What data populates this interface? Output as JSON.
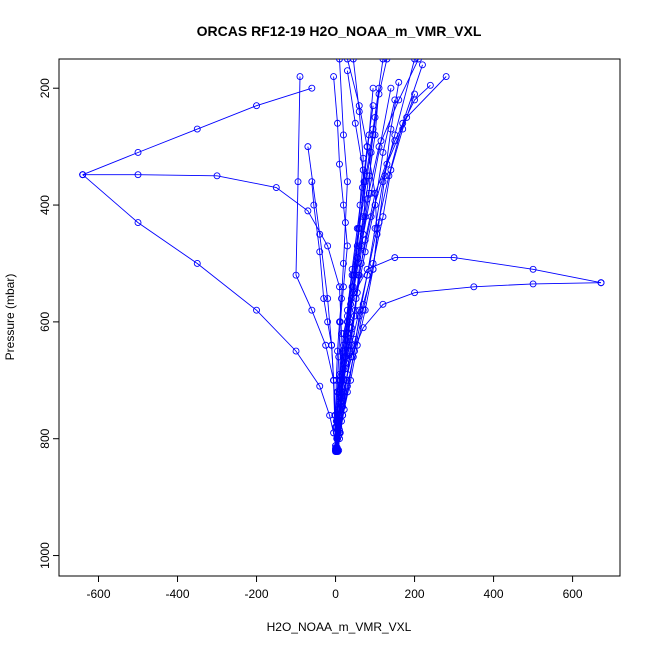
{
  "chart_data": {
    "type": "line",
    "title": "ORCAS RF12-19 H2O_NOAA_m_VMR_VXL",
    "xlabel": "H2O_NOAA_m_VMR_VXL",
    "ylabel": "Pressure (mbar)",
    "xlim": [
      -700,
      720
    ],
    "ylim": [
      1035,
      150
    ],
    "y_reversed": true,
    "x_ticks": [
      -600,
      -400,
      -200,
      0,
      200,
      400,
      600
    ],
    "y_ticks": [
      200,
      400,
      600,
      800,
      1000
    ],
    "grid": false,
    "legend": "none",
    "series_color": "#0000ff",
    "marker": "open-circle",
    "series": [
      {
        "x": [
          0,
          2,
          5,
          18,
          30,
          45,
          60,
          80,
          95,
          110,
          130
        ],
        "y": [
          820,
          780,
          720,
          650,
          600,
          520,
          440,
          350,
          280,
          210,
          150
        ]
      },
      {
        "x": [
          3,
          6,
          14,
          25,
          40,
          52,
          65,
          90,
          130,
          180,
          280
        ],
        "y": [
          818,
          790,
          740,
          680,
          620,
          560,
          500,
          420,
          330,
          250,
          180
        ]
      },
      {
        "x": [
          5,
          8,
          20,
          35,
          50,
          60,
          75,
          100,
          150,
          200,
          240
        ],
        "y": [
          820,
          760,
          700,
          640,
          580,
          520,
          460,
          380,
          290,
          220,
          195
        ]
      },
      {
        "x": [
          2,
          4,
          10,
          20,
          30,
          42,
          55,
          62,
          70,
          60,
          45
        ],
        "y": [
          821,
          770,
          720,
          660,
          600,
          540,
          470,
          400,
          320,
          240,
          150
        ]
      },
      {
        "x": [
          6,
          10,
          18,
          28,
          40,
          60,
          80,
          100,
          120,
          150,
          200
        ],
        "y": [
          822,
          800,
          760,
          700,
          640,
          580,
          520,
          440,
          360,
          280,
          150
        ]
      },
      {
        "x": [
          1,
          0,
          2,
          5,
          10,
          15,
          20,
          25,
          30,
          20,
          10
        ],
        "y": [
          819,
          780,
          700,
          650,
          600,
          560,
          500,
          430,
          360,
          280,
          150
        ]
      },
      {
        "x": [
          4,
          7,
          15,
          25,
          35,
          45,
          55,
          70,
          85,
          100,
          110
        ],
        "y": [
          815,
          780,
          730,
          670,
          610,
          550,
          490,
          420,
          350,
          280,
          200
        ]
      },
      {
        "x": [
          8,
          10,
          12,
          16,
          22,
          30,
          42,
          58,
          75,
          95,
          120
        ],
        "y": [
          820,
          790,
          750,
          700,
          650,
          590,
          520,
          440,
          360,
          270,
          150
        ]
      },
      {
        "x": [
          0,
          3,
          9,
          15,
          25,
          35,
          48,
          60,
          72,
          85,
          95
        ],
        "y": [
          816,
          800,
          770,
          720,
          660,
          600,
          520,
          440,
          360,
          280,
          200
        ]
      },
      {
        "x": [
          5,
          12,
          22,
          38,
          55,
          75,
          95,
          110,
          125,
          140,
          160
        ],
        "y": [
          821,
          790,
          750,
          700,
          640,
          580,
          510,
          430,
          350,
          270,
          190
        ]
      },
      {
        "x": [
          2,
          8,
          15,
          25,
          35,
          45,
          60,
          80,
          110,
          160,
          210
        ],
        "y": [
          818,
          780,
          730,
          660,
          600,
          540,
          470,
          390,
          300,
          220,
          150
        ]
      },
      {
        "x": [
          3,
          5,
          8,
          12,
          20,
          30,
          45,
          65,
          90,
          115,
          140
        ],
        "y": [
          820,
          800,
          770,
          730,
          680,
          620,
          550,
          470,
          380,
          290,
          200
        ]
      },
      {
        "x": [
          0,
          10,
          30,
          50,
          70,
          95,
          105,
          100,
          80,
          60,
          30
        ],
        "y": [
          812,
          750,
          690,
          630,
          570,
          510,
          450,
          380,
          300,
          230,
          150
        ]
      },
      {
        "x": [
          2,
          6,
          10,
          15,
          25,
          40,
          55,
          75,
          100,
          120,
          150
        ],
        "y": [
          819,
          790,
          760,
          720,
          670,
          610,
          550,
          480,
          400,
          310,
          220
        ]
      },
      {
        "x": [
          1,
          5,
          15,
          30,
          45,
          60,
          80,
          105,
          135,
          170,
          220
        ],
        "y": [
          820,
          800,
          770,
          720,
          660,
          590,
          520,
          440,
          350,
          260,
          160
        ]
      },
      {
        "x": [
          0,
          -5,
          -10,
          -20,
          -30,
          -40,
          -55,
          -60
        ],
        "y": [
          822,
          700,
          640,
          600,
          560,
          480,
          400,
          360
        ]
      },
      {
        "x": [
          0,
          -2,
          -5,
          -10,
          -20,
          -40,
          -70
        ],
        "y": [
          820,
          760,
          700,
          640,
          560,
          450,
          300
        ]
      },
      {
        "x": [
          2,
          0,
          -5,
          -25,
          -60,
          -100,
          -95,
          -90
        ],
        "y": [
          821,
          760,
          700,
          640,
          580,
          520,
          360,
          180
        ]
      },
      {
        "x": [
          1,
          2,
          4,
          8,
          12,
          20,
          30,
          20,
          10,
          5,
          -5
        ],
        "y": [
          818,
          770,
          720,
          660,
          600,
          540,
          470,
          400,
          330,
          260,
          180
        ]
      },
      {
        "x": [
          4,
          6,
          10,
          16,
          26,
          38,
          55,
          75,
          70,
          50,
          30
        ],
        "y": [
          820,
          780,
          740,
          690,
          630,
          570,
          500,
          420,
          340,
          260,
          170
        ]
      },
      {
        "x": [
          3,
          8,
          20,
          40,
          70,
          120,
          200,
          350,
          500,
          672
        ],
        "y": [
          819,
          780,
          720,
          660,
          610,
          570,
          550,
          540,
          535,
          533
        ]
      },
      {
        "x": [
          2,
          5,
          10,
          20,
          40,
          80,
          150,
          300,
          500,
          672
        ],
        "y": [
          821,
          770,
          700,
          620,
          560,
          510,
          490,
          490,
          510,
          533
        ]
      },
      {
        "x": [
          1,
          -5,
          -15,
          -40,
          -100,
          -200,
          -350,
          -500,
          -640
        ],
        "y": [
          815,
          790,
          760,
          710,
          650,
          580,
          500,
          430,
          348
        ]
      },
      {
        "x": [
          0,
          5,
          10,
          15,
          10,
          -20,
          -70,
          -150,
          -300,
          -500,
          -640
        ],
        "y": [
          818,
          760,
          690,
          620,
          540,
          470,
          410,
          370,
          350,
          348,
          348
        ]
      },
      {
        "x": [
          -640,
          -500,
          -350,
          -200,
          -60
        ],
        "y": [
          348,
          310,
          270,
          230,
          200
        ]
      },
      {
        "x": [
          2,
          8,
          18,
          30,
          48,
          70,
          95,
          120,
          140,
          170,
          200
        ],
        "y": [
          822,
          795,
          760,
          710,
          650,
          580,
          500,
          420,
          340,
          270,
          210
        ]
      },
      {
        "x": [
          5,
          10,
          18,
          28,
          36,
          48,
          58,
          70,
          85,
          90,
          100
        ],
        "y": [
          817,
          785,
          745,
          700,
          650,
          590,
          520,
          450,
          380,
          310,
          250
        ]
      },
      {
        "x": [
          0,
          2,
          6,
          12,
          20,
          30,
          42,
          55,
          68,
          80,
          95
        ],
        "y": [
          820,
          790,
          750,
          700,
          640,
          580,
          510,
          440,
          370,
          300,
          230
        ]
      }
    ]
  }
}
